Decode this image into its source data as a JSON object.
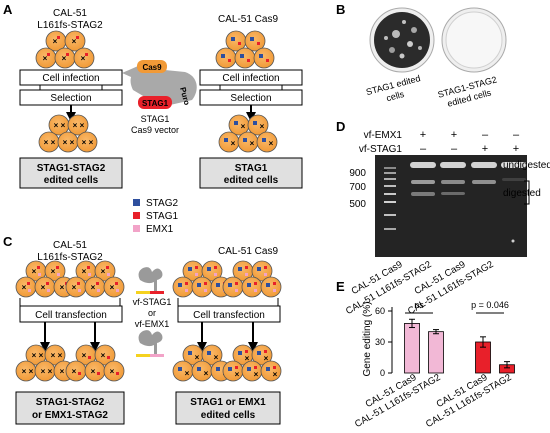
{
  "panels": {
    "A": "A",
    "B": "B",
    "C": "C",
    "D": "D",
    "E": "E"
  },
  "panel_a": {
    "left_title_1": "CAL-51",
    "left_title_2": "L161fs-STAG2",
    "right_title": "CAL-51 Cas9",
    "step_infection": "Cell infection",
    "step_selection": "Selection",
    "left_result_1": "STAG1-STAG2",
    "left_result_2": "edited cells",
    "right_result_1": "STAG1",
    "right_result_2": "edited cells",
    "vector_cas9": "Cas9",
    "vector_puro": "Puro",
    "vector_stag1": "STAG1",
    "vector_caption_1": "STAG1",
    "vector_caption_2": "Cas9 vector"
  },
  "legend": {
    "items": [
      {
        "label": "STAG2",
        "color": "#2e4f9e"
      },
      {
        "label": "STAG1",
        "color": "#e8202a"
      },
      {
        "label": "EMX1",
        "color": "#f2a3c8"
      }
    ]
  },
  "panel_b": {
    "label_1_line1": "STAG1 edited",
    "label_1_line2": "cells",
    "label_2_line1": "STAG1-STAG2",
    "label_2_line2": "edited cells"
  },
  "panel_c": {
    "left_title_1": "CAL-51",
    "left_title_2": "L161fs-STAG2",
    "right_title": "CAL-51 Cas9",
    "step_transfection": "Cell transfection",
    "guide_1": "vf-STAG1",
    "guide_or": "or",
    "guide_2": "vf-EMX1",
    "left_result_1": "STAG1-STAG2",
    "left_result_2": "or EMX1-STAG2",
    "right_result_1": "STAG1 or EMX1",
    "right_result_2": "edited cells"
  },
  "panel_d": {
    "row_labels": [
      "vf-EMX1",
      "vf-STAG1"
    ],
    "lane_signs": [
      [
        "+",
        "+",
        "–",
        "–"
      ],
      [
        "–",
        "–",
        "+",
        "+"
      ]
    ],
    "ladder": [
      "900",
      "700",
      "500"
    ],
    "undigested": "undigested",
    "digested": "digested",
    "lanes": [
      "CAL-51 Cas9",
      "CAL-51 L161fs-STAG2",
      "CAL-51 Cas9",
      "CAL-51 L161fs-STAG2"
    ]
  },
  "chart_data": {
    "type": "bar",
    "ylabel": "Gene editing (%)",
    "ylim": [
      0,
      60
    ],
    "yticks": [
      "0",
      "30",
      "60"
    ],
    "categories": [
      "CAL-51 Cas9",
      "CAL-51 L161fs-STAG2",
      "CAL-51 Cas9",
      "CAL-51 L161fs-STAG2"
    ],
    "values": [
      48,
      40,
      30,
      8
    ],
    "errors": [
      4,
      2,
      5,
      3
    ],
    "colors": [
      "#f2b8d6",
      "#f2b8d6",
      "#e8202a",
      "#e8202a"
    ],
    "annotations": [
      "ns",
      "p = 0.046"
    ]
  }
}
